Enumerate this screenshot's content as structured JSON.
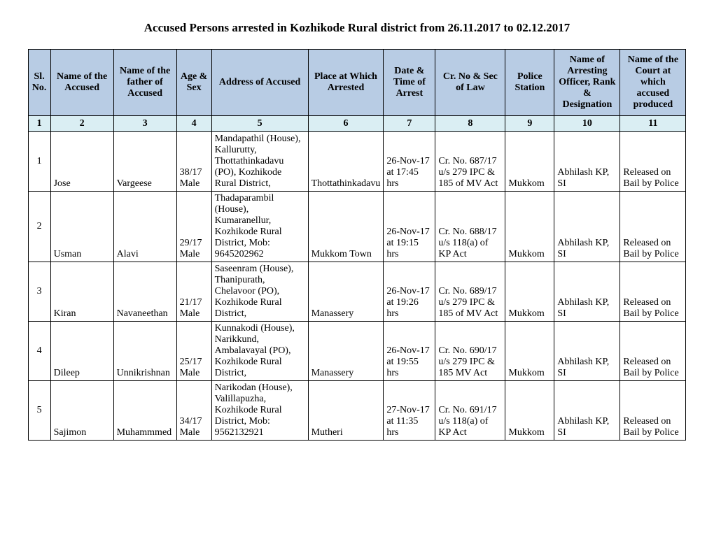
{
  "title": "Accused Persons arrested in   Kozhikode Rural  district from   26.11.2017 to 02.12.2017",
  "headers": {
    "c1": "Sl. No.",
    "c2": "Name of the Accused",
    "c3": "Name of the father of Accused",
    "c4": "Age & Sex",
    "c5": "Address of Accused",
    "c6": "Place at Which Arrested",
    "c7": "Date & Time of Arrest",
    "c8": "Cr. No & Sec of Law",
    "c9": "Police Station",
    "c10": "Name of Arresting Officer, Rank & Designation",
    "c11": "Name of the Court at which accused produced"
  },
  "numrow": {
    "c1": "1",
    "c2": "2",
    "c3": "3",
    "c4": "4",
    "c5": "5",
    "c6": "6",
    "c7": "7",
    "c8": "8",
    "c9": "9",
    "c10": "10",
    "c11": "11"
  },
  "rows": [
    {
      "sl": "1",
      "name": "Jose",
      "father": "Vargeese",
      "age": "38/17 Male",
      "address": "Mandapathil (House), Kallurutty, Thottathinkadavu (PO), Kozhikode Rural District,",
      "place": "Thottathinkadavu",
      "datetime": "26-Nov-17 at 17:45 hrs",
      "crno": "Cr. No. 687/17 u/s 279 IPC & 185 of MV Act",
      "station": "Mukkom",
      "officer": "Abhilash KP, SI",
      "court": "Released on Bail by Police"
    },
    {
      "sl": "2",
      "name": "Usman",
      "father": "Alavi",
      "age": "29/17 Male",
      "address": "Thadaparambil (House), Kumaranellur, Kozhikode Rural District,  Mob: 9645202962",
      "place": "Mukkom Town",
      "datetime": "26-Nov-17 at 19:15 hrs",
      "crno": "Cr. No. 688/17 u/s 118(a) of KP Act",
      "station": "Mukkom",
      "officer": "Abhilash KP, SI",
      "court": "Released on Bail by Police"
    },
    {
      "sl": "3",
      "name": "Kiran",
      "father": "Navaneethan",
      "age": "21/17 Male",
      "address": "Saseenram (House), Thanipurath, Chelavoor (PO), Kozhikode Rural District,",
      "place": "Manassery",
      "datetime": "26-Nov-17 at 19:26 hrs",
      "crno": "Cr. No. 689/17 u/s 279 IPC & 185 of MV Act",
      "station": "Mukkom",
      "officer": "Abhilash KP, SI",
      "court": "Released on Bail by Police"
    },
    {
      "sl": "4",
      "name": "Dileep",
      "father": "Unnikrishnan",
      "age": "25/17 Male",
      "address": "Kunnakodi (House), Narikkund, Ambalavayal (PO), Kozhikode Rural District,",
      "place": "Manassery",
      "datetime": "26-Nov-17 at 19:55 hrs",
      "crno": "Cr. No. 690/17 u/s 279 IPC & 185 MV Act",
      "station": "Mukkom",
      "officer": "Abhilash KP, SI",
      "court": "Released on Bail by Police"
    },
    {
      "sl": "5",
      "name": "Sajimon",
      "father": "Muhammmed",
      "age": "34/17 Male",
      "address": "Narikodan (House), Valillapuzha, Kozhikode Rural District,  Mob: 9562132921",
      "place": "Mutheri",
      "datetime": "27-Nov-17 at 11:35 hrs",
      "crno": "Cr. No. 691/17 u/s 118(a) of KP Act",
      "station": "Mukkom",
      "officer": "Abhilash KP, SI",
      "court": "Released on Bail by Police"
    }
  ]
}
